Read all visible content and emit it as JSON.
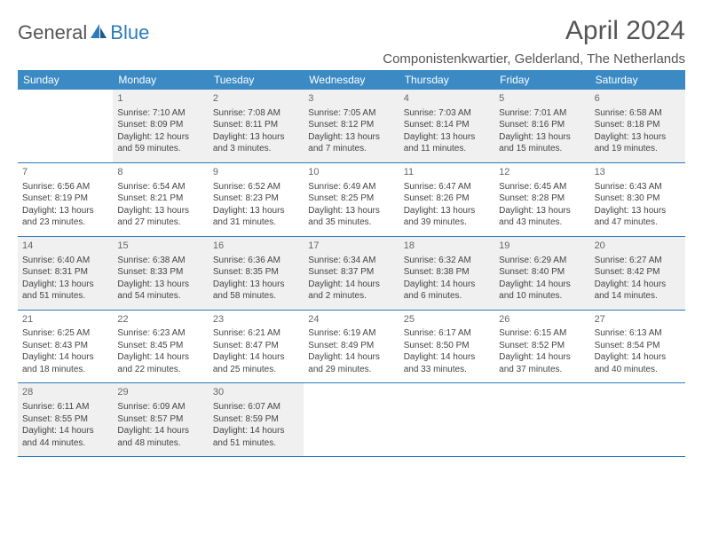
{
  "logo": {
    "general": "General",
    "blue": "Blue"
  },
  "title": "April 2024",
  "location": "Componistenkwartier, Gelderland, The Netherlands",
  "day_headers": [
    "Sunday",
    "Monday",
    "Tuesday",
    "Wednesday",
    "Thursday",
    "Friday",
    "Saturday"
  ],
  "colors": {
    "header_bg": "#3b8ac4",
    "row_border": "#2b7bbd",
    "shaded_bg": "#f0f0f0",
    "text": "#444"
  },
  "weeks": [
    [
      {
        "day": "",
        "shaded": false
      },
      {
        "day": "1",
        "shaded": true,
        "sunrise": "Sunrise: 7:10 AM",
        "sunset": "Sunset: 8:09 PM",
        "dl1": "Daylight: 12 hours",
        "dl2": "and 59 minutes."
      },
      {
        "day": "2",
        "shaded": true,
        "sunrise": "Sunrise: 7:08 AM",
        "sunset": "Sunset: 8:11 PM",
        "dl1": "Daylight: 13 hours",
        "dl2": "and 3 minutes."
      },
      {
        "day": "3",
        "shaded": true,
        "sunrise": "Sunrise: 7:05 AM",
        "sunset": "Sunset: 8:12 PM",
        "dl1": "Daylight: 13 hours",
        "dl2": "and 7 minutes."
      },
      {
        "day": "4",
        "shaded": true,
        "sunrise": "Sunrise: 7:03 AM",
        "sunset": "Sunset: 8:14 PM",
        "dl1": "Daylight: 13 hours",
        "dl2": "and 11 minutes."
      },
      {
        "day": "5",
        "shaded": true,
        "sunrise": "Sunrise: 7:01 AM",
        "sunset": "Sunset: 8:16 PM",
        "dl1": "Daylight: 13 hours",
        "dl2": "and 15 minutes."
      },
      {
        "day": "6",
        "shaded": true,
        "sunrise": "Sunrise: 6:58 AM",
        "sunset": "Sunset: 8:18 PM",
        "dl1": "Daylight: 13 hours",
        "dl2": "and 19 minutes."
      }
    ],
    [
      {
        "day": "7",
        "shaded": false,
        "sunrise": "Sunrise: 6:56 AM",
        "sunset": "Sunset: 8:19 PM",
        "dl1": "Daylight: 13 hours",
        "dl2": "and 23 minutes."
      },
      {
        "day": "8",
        "shaded": false,
        "sunrise": "Sunrise: 6:54 AM",
        "sunset": "Sunset: 8:21 PM",
        "dl1": "Daylight: 13 hours",
        "dl2": "and 27 minutes."
      },
      {
        "day": "9",
        "shaded": false,
        "sunrise": "Sunrise: 6:52 AM",
        "sunset": "Sunset: 8:23 PM",
        "dl1": "Daylight: 13 hours",
        "dl2": "and 31 minutes."
      },
      {
        "day": "10",
        "shaded": false,
        "sunrise": "Sunrise: 6:49 AM",
        "sunset": "Sunset: 8:25 PM",
        "dl1": "Daylight: 13 hours",
        "dl2": "and 35 minutes."
      },
      {
        "day": "11",
        "shaded": false,
        "sunrise": "Sunrise: 6:47 AM",
        "sunset": "Sunset: 8:26 PM",
        "dl1": "Daylight: 13 hours",
        "dl2": "and 39 minutes."
      },
      {
        "day": "12",
        "shaded": false,
        "sunrise": "Sunrise: 6:45 AM",
        "sunset": "Sunset: 8:28 PM",
        "dl1": "Daylight: 13 hours",
        "dl2": "and 43 minutes."
      },
      {
        "day": "13",
        "shaded": false,
        "sunrise": "Sunrise: 6:43 AM",
        "sunset": "Sunset: 8:30 PM",
        "dl1": "Daylight: 13 hours",
        "dl2": "and 47 minutes."
      }
    ],
    [
      {
        "day": "14",
        "shaded": true,
        "sunrise": "Sunrise: 6:40 AM",
        "sunset": "Sunset: 8:31 PM",
        "dl1": "Daylight: 13 hours",
        "dl2": "and 51 minutes."
      },
      {
        "day": "15",
        "shaded": true,
        "sunrise": "Sunrise: 6:38 AM",
        "sunset": "Sunset: 8:33 PM",
        "dl1": "Daylight: 13 hours",
        "dl2": "and 54 minutes."
      },
      {
        "day": "16",
        "shaded": true,
        "sunrise": "Sunrise: 6:36 AM",
        "sunset": "Sunset: 8:35 PM",
        "dl1": "Daylight: 13 hours",
        "dl2": "and 58 minutes."
      },
      {
        "day": "17",
        "shaded": true,
        "sunrise": "Sunrise: 6:34 AM",
        "sunset": "Sunset: 8:37 PM",
        "dl1": "Daylight: 14 hours",
        "dl2": "and 2 minutes."
      },
      {
        "day": "18",
        "shaded": true,
        "sunrise": "Sunrise: 6:32 AM",
        "sunset": "Sunset: 8:38 PM",
        "dl1": "Daylight: 14 hours",
        "dl2": "and 6 minutes."
      },
      {
        "day": "19",
        "shaded": true,
        "sunrise": "Sunrise: 6:29 AM",
        "sunset": "Sunset: 8:40 PM",
        "dl1": "Daylight: 14 hours",
        "dl2": "and 10 minutes."
      },
      {
        "day": "20",
        "shaded": true,
        "sunrise": "Sunrise: 6:27 AM",
        "sunset": "Sunset: 8:42 PM",
        "dl1": "Daylight: 14 hours",
        "dl2": "and 14 minutes."
      }
    ],
    [
      {
        "day": "21",
        "shaded": false,
        "sunrise": "Sunrise: 6:25 AM",
        "sunset": "Sunset: 8:43 PM",
        "dl1": "Daylight: 14 hours",
        "dl2": "and 18 minutes."
      },
      {
        "day": "22",
        "shaded": false,
        "sunrise": "Sunrise: 6:23 AM",
        "sunset": "Sunset: 8:45 PM",
        "dl1": "Daylight: 14 hours",
        "dl2": "and 22 minutes."
      },
      {
        "day": "23",
        "shaded": false,
        "sunrise": "Sunrise: 6:21 AM",
        "sunset": "Sunset: 8:47 PM",
        "dl1": "Daylight: 14 hours",
        "dl2": "and 25 minutes."
      },
      {
        "day": "24",
        "shaded": false,
        "sunrise": "Sunrise: 6:19 AM",
        "sunset": "Sunset: 8:49 PM",
        "dl1": "Daylight: 14 hours",
        "dl2": "and 29 minutes."
      },
      {
        "day": "25",
        "shaded": false,
        "sunrise": "Sunrise: 6:17 AM",
        "sunset": "Sunset: 8:50 PM",
        "dl1": "Daylight: 14 hours",
        "dl2": "and 33 minutes."
      },
      {
        "day": "26",
        "shaded": false,
        "sunrise": "Sunrise: 6:15 AM",
        "sunset": "Sunset: 8:52 PM",
        "dl1": "Daylight: 14 hours",
        "dl2": "and 37 minutes."
      },
      {
        "day": "27",
        "shaded": false,
        "sunrise": "Sunrise: 6:13 AM",
        "sunset": "Sunset: 8:54 PM",
        "dl1": "Daylight: 14 hours",
        "dl2": "and 40 minutes."
      }
    ],
    [
      {
        "day": "28",
        "shaded": true,
        "sunrise": "Sunrise: 6:11 AM",
        "sunset": "Sunset: 8:55 PM",
        "dl1": "Daylight: 14 hours",
        "dl2": "and 44 minutes."
      },
      {
        "day": "29",
        "shaded": true,
        "sunrise": "Sunrise: 6:09 AM",
        "sunset": "Sunset: 8:57 PM",
        "dl1": "Daylight: 14 hours",
        "dl2": "and 48 minutes."
      },
      {
        "day": "30",
        "shaded": true,
        "sunrise": "Sunrise: 6:07 AM",
        "sunset": "Sunset: 8:59 PM",
        "dl1": "Daylight: 14 hours",
        "dl2": "and 51 minutes."
      },
      {
        "day": "",
        "shaded": false
      },
      {
        "day": "",
        "shaded": false
      },
      {
        "day": "",
        "shaded": false
      },
      {
        "day": "",
        "shaded": false
      }
    ]
  ]
}
